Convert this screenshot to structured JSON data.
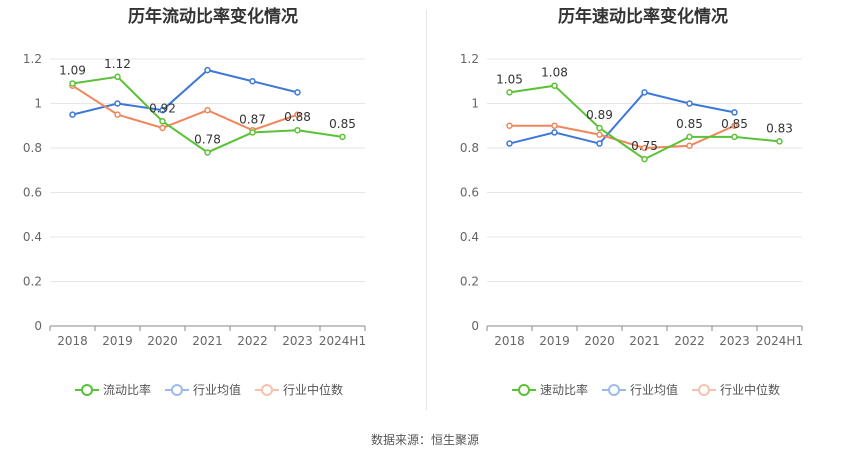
{
  "chart_data": [
    {
      "type": "line",
      "title": "历年流动比率变化情况",
      "categories": [
        "2018",
        "2019",
        "2020",
        "2021",
        "2022",
        "2023",
        "2024H1"
      ],
      "ylim": [
        0,
        1.2
      ],
      "yticks": [
        "0",
        "0.2",
        "0.4",
        "0.6",
        "0.8",
        "1",
        "1.2"
      ],
      "series": [
        {
          "name": "流动比率",
          "color": "#5ac236",
          "values": [
            1.09,
            1.12,
            0.92,
            0.78,
            0.87,
            0.88,
            0.85
          ],
          "labels": [
            "1.09",
            "1.12",
            "0.92",
            "0.78",
            "0.87",
            "0.88",
            "0.85"
          ]
        },
        {
          "name": "行业均值",
          "color": "#3d78d8",
          "values": [
            0.95,
            1.0,
            0.97,
            1.15,
            1.1,
            1.05,
            null
          ]
        },
        {
          "name": "行业中位数",
          "color": "#f0865c",
          "values": [
            1.08,
            0.95,
            0.89,
            0.97,
            0.88,
            0.95,
            null
          ]
        }
      ]
    },
    {
      "type": "line",
      "title": "历年速动比率变化情况",
      "categories": [
        "2018",
        "2019",
        "2020",
        "2021",
        "2022",
        "2023",
        "2024H1"
      ],
      "ylim": [
        0,
        1.2
      ],
      "yticks": [
        "0",
        "0.2",
        "0.4",
        "0.6",
        "0.8",
        "1",
        "1.2"
      ],
      "series": [
        {
          "name": "速动比率",
          "color": "#5ac236",
          "values": [
            1.05,
            1.08,
            0.89,
            0.75,
            0.85,
            0.85,
            0.83
          ],
          "labels": [
            "1.05",
            "1.08",
            "0.89",
            "0.75",
            "0.85",
            "0.85",
            "0.83"
          ]
        },
        {
          "name": "行业均值",
          "color": "#3d78d8",
          "values": [
            0.82,
            0.87,
            0.82,
            1.05,
            1.0,
            0.96,
            null
          ]
        },
        {
          "name": "行业中位数",
          "color": "#f0865c",
          "values": [
            0.9,
            0.9,
            0.86,
            0.8,
            0.81,
            0.9,
            null
          ]
        }
      ]
    }
  ],
  "source_text": "数据来源：恒生聚源"
}
